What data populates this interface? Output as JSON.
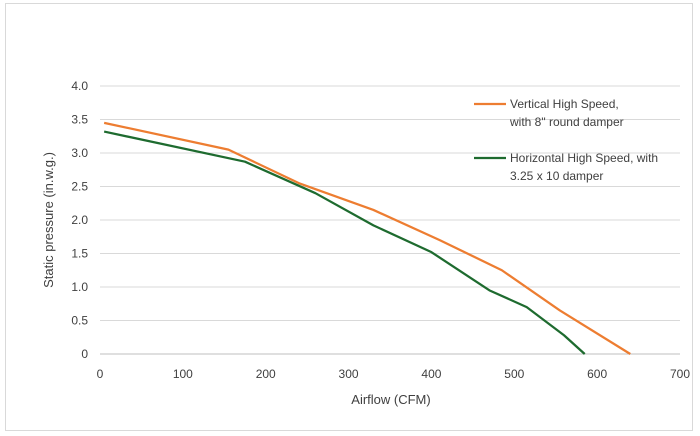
{
  "chart_data": {
    "type": "line",
    "title": "",
    "xlabel": "Airflow (CFM)",
    "ylabel": "Static pressure (in.w.g.)",
    "xlim": [
      0,
      700
    ],
    "ylim": [
      0,
      4
    ],
    "xticks": [
      0,
      100,
      200,
      300,
      400,
      500,
      600,
      700
    ],
    "xtick_labels": [
      "0",
      "100",
      "200",
      "300",
      "400",
      "500",
      "600",
      "700"
    ],
    "yticks": [
      0,
      0.5,
      1,
      1.5,
      2,
      2.5,
      3,
      3.5,
      4
    ],
    "ytick_labels": [
      "0",
      "0.5",
      "1.0",
      "1.5",
      "2.0",
      "2.5",
      "3.0",
      "3.5",
      "4.0"
    ],
    "grid": "horizontal",
    "legend_position": "top-right",
    "series": [
      {
        "name_lines": [
          "Vertical High Speed,",
          "with 8\" round damper"
        ],
        "color": "#ed7d31",
        "x": [
          5,
          155,
          240,
          330,
          410,
          485,
          555,
          640
        ],
        "y": [
          3.45,
          3.05,
          2.55,
          2.15,
          1.7,
          1.25,
          0.65,
          0.0
        ]
      },
      {
        "name_lines": [
          "Horizontal High Speed, with",
          "3.25 x 10 damper"
        ],
        "color": "#1e6b2f",
        "x": [
          5,
          175,
          260,
          330,
          400,
          470,
          515,
          560,
          585
        ],
        "y": [
          3.32,
          2.87,
          2.4,
          1.92,
          1.52,
          0.95,
          0.7,
          0.28,
          0.0
        ]
      }
    ]
  }
}
